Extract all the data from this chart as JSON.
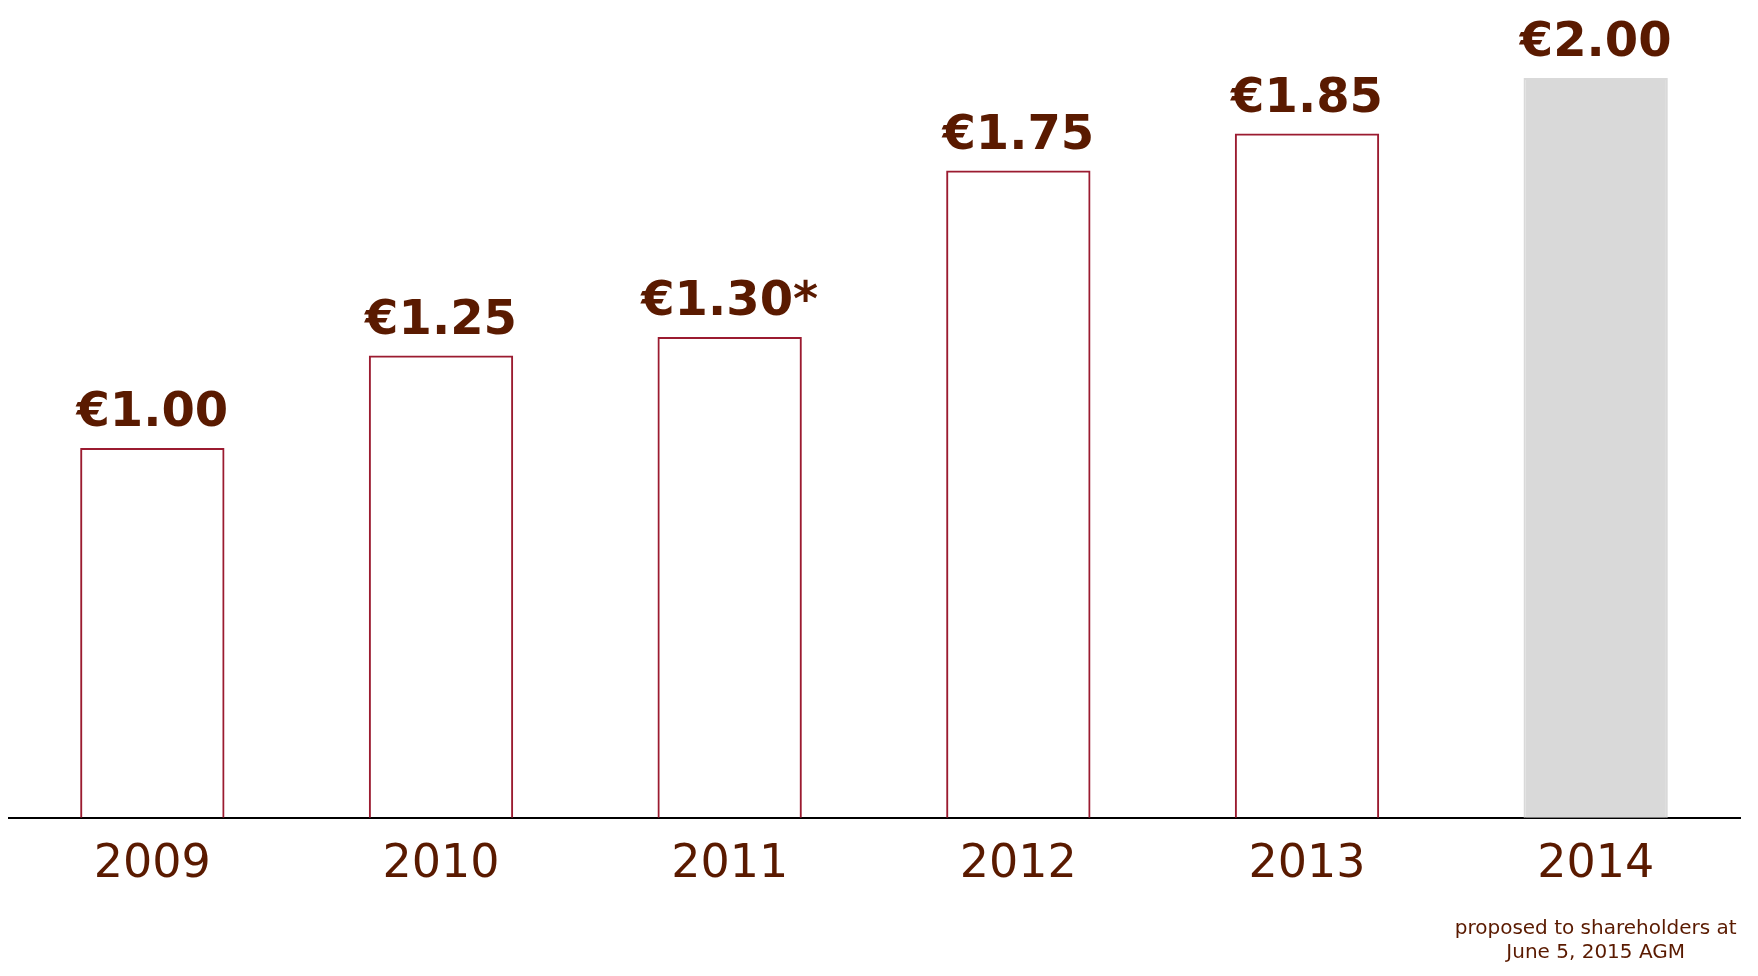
{
  "chart_data": {
    "type": "bar",
    "categories": [
      "2009",
      "2010",
      "2011",
      "2012",
      "2013",
      "2014"
    ],
    "series": [
      {
        "color": "#9b1b30",
        "values": [
          1.0,
          1.25,
          1.3,
          1.75,
          1.85,
          2.0
        ],
        "colors": [
          "#9b1b30",
          "#9b1b30",
          "#9b1b30",
          "#9b1b30",
          "#9b1b30",
          "#d9d9d9"
        ],
        "value_labels": [
          "€1.00",
          "€1.25",
          "€1.30*",
          "€1.75",
          "€1.85",
          "€2.00"
        ]
      }
    ],
    "annotations": [
      "proposed to shareholders at June 5, 2015 AGM"
    ],
    "grid": false,
    "legend": false
  }
}
